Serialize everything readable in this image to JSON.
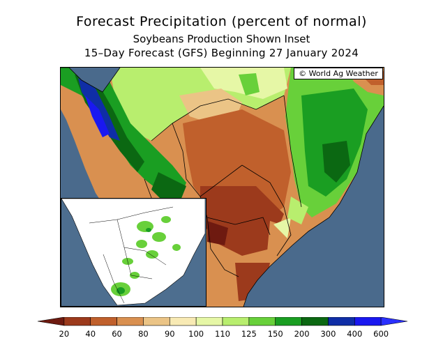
{
  "header": {
    "title": "Forecast Precipitation (percent of normal)",
    "subtitle": "Soybeans Production Shown Inset",
    "period": "15–Day Forecast (GFS) Beginning 27 January 2024"
  },
  "credit": "© World Ag Weather",
  "legend": {
    "ticks": [
      "20",
      "40",
      "60",
      "80",
      "90",
      "100",
      "110",
      "125",
      "150",
      "200",
      "300",
      "400",
      "600"
    ],
    "colors": [
      "#6e1a10",
      "#9c3a1c",
      "#c0602c",
      "#d99050",
      "#ebc486",
      "#f8eab4",
      "#e6f7a6",
      "#b8ee6e",
      "#68d03a",
      "#1a9e22",
      "#0b6812",
      "#0f2ea6",
      "#1a18f0",
      "#2a30ff"
    ]
  },
  "map": {
    "ocean_color": "#4a6a8c",
    "region": "South America"
  },
  "inset": {
    "label": "Soybeans Production"
  }
}
